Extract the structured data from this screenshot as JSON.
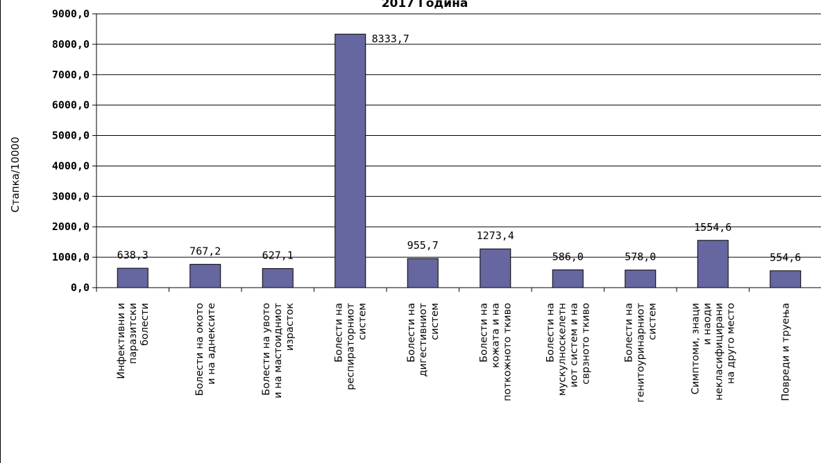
{
  "chart_data": {
    "type": "bar",
    "title": "2017 Година",
    "xlabel": "",
    "ylabel": "Стапка/10000",
    "ylim": [
      0,
      9000
    ],
    "yticks": [
      "0,0",
      "1000,0",
      "2000,0",
      "3000,0",
      "4000,0",
      "5000,0",
      "6000,0",
      "7000,0",
      "8000,0",
      "9000,0"
    ],
    "grid": true,
    "legend": "none",
    "bar_color": "#6666a0",
    "categories": [
      [
        "Инфективни и",
        "паразитски",
        "болести"
      ],
      [
        "Болести на окото",
        "и на аднекситe"
      ],
      [
        "Болести на увото",
        "и на мастоидниот",
        "израсток"
      ],
      [
        "Болести на",
        "респираторниот",
        "систем"
      ],
      [
        "Болести на",
        "дигестивниот",
        "систем"
      ],
      [
        "Болести на",
        "кожата и на",
        "поткожното ткиво"
      ],
      [
        "Болести на",
        "мускулноскелетн",
        "иот систем и на",
        "сврзното ткиво"
      ],
      [
        "Болести на",
        "генитоуринарниот",
        "систем"
      ],
      [
        "Симптоми, знаци",
        "и наоди",
        "некласифицирани",
        "на друго место"
      ],
      [
        "Повреди и труења"
      ]
    ],
    "values": [
      638.3,
      767.2,
      627.1,
      8333.7,
      955.7,
      1273.4,
      586.0,
      578.0,
      1554.6,
      554.6
    ],
    "data_labels": [
      "638,3",
      "767,2",
      "627,1",
      "8333,7",
      "955,7",
      "1273,4",
      "586,0",
      "578,0",
      "1554,6",
      "554,6"
    ]
  }
}
